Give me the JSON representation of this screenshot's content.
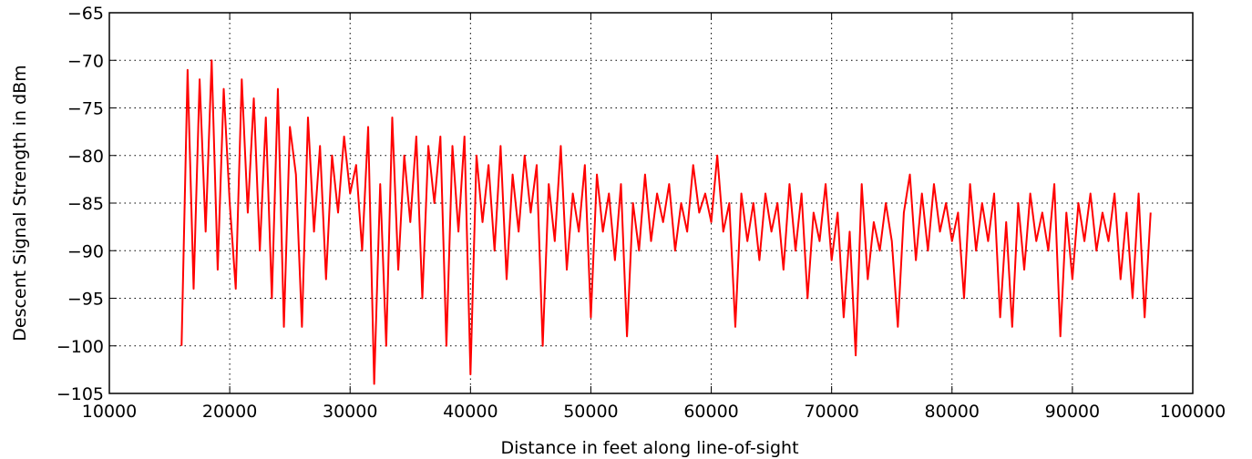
{
  "chart_data": {
    "type": "line",
    "xlabel": "Distance in feet along line-of-sight",
    "ylabel": "Descent Signal Strength in dBm",
    "xlim": [
      10000,
      100000
    ],
    "xticks": [
      10000,
      20000,
      30000,
      40000,
      50000,
      60000,
      70000,
      80000,
      90000,
      100000
    ],
    "ylim": [
      -105,
      -65
    ],
    "yticks": [
      {
        "value": -105,
        "label": "−105"
      },
      {
        "value": -100,
        "label": "−100"
      },
      {
        "value": -95,
        "label": "−95"
      },
      {
        "value": -90,
        "label": "−90"
      },
      {
        "value": -85,
        "label": "−85"
      },
      {
        "value": -80,
        "label": "−80"
      },
      {
        "value": -75,
        "label": "−75"
      },
      {
        "value": -70,
        "label": "−70"
      },
      {
        "value": -65,
        "label": "−65"
      }
    ],
    "grid": true,
    "x": [
      16000,
      16500,
      17000,
      17500,
      18000,
      18500,
      19000,
      19500,
      20000,
      20500,
      21000,
      21500,
      22000,
      22500,
      23000,
      23500,
      24000,
      24500,
      25000,
      25500,
      26000,
      26500,
      27000,
      27500,
      28000,
      28500,
      29000,
      29500,
      30000,
      30500,
      31000,
      31500,
      32000,
      32500,
      33000,
      33500,
      34000,
      34500,
      35000,
      35500,
      36000,
      36500,
      37000,
      37500,
      38000,
      38500,
      39000,
      39500,
      40000,
      40500,
      41000,
      41500,
      42000,
      42500,
      43000,
      43500,
      44000,
      44500,
      45000,
      45500,
      46000,
      46500,
      47000,
      47500,
      48000,
      48500,
      49000,
      49500,
      50000,
      50500,
      51000,
      51500,
      52000,
      52500,
      53000,
      53500,
      54000,
      54500,
      55000,
      55500,
      56000,
      56500,
      57000,
      57500,
      58000,
      58500,
      59000,
      59500,
      60000,
      60500,
      61000,
      61500,
      62000,
      62500,
      63000,
      63500,
      64000,
      64500,
      65000,
      65500,
      66000,
      66500,
      67000,
      67500,
      68000,
      68500,
      69000,
      69500,
      70000,
      70500,
      71000,
      71500,
      72000,
      72500,
      73000,
      73500,
      74000,
      74500,
      75000,
      75500,
      76000,
      76500,
      77000,
      77500,
      78000,
      78500,
      79000,
      79500,
      80000,
      80500,
      81000,
      81500,
      82000,
      82500,
      83000,
      83500,
      84000,
      84500,
      85000,
      85500,
      86000,
      86500,
      87000,
      87500,
      88000,
      88500,
      89000,
      89500,
      90000,
      90500,
      91000,
      91500,
      92000,
      92500,
      93000,
      93500,
      94000,
      94500,
      95000,
      95500,
      96000,
      96500
    ],
    "series": [
      {
        "color": "#ff0000",
        "values": [
          -100,
          -71,
          -94,
          -72,
          -88,
          -70,
          -92,
          -73,
          -85,
          -94,
          -72,
          -86,
          -74,
          -90,
          -76,
          -95,
          -73,
          -98,
          -77,
          -82,
          -98,
          -76,
          -88,
          -79,
          -93,
          -80,
          -86,
          -78,
          -84,
          -81,
          -90,
          -77,
          -104,
          -83,
          -100,
          -76,
          -92,
          -80,
          -87,
          -78,
          -95,
          -79,
          -85,
          -78,
          -100,
          -79,
          -88,
          -78,
          -103,
          -80,
          -87,
          -81,
          -90,
          -79,
          -93,
          -82,
          -88,
          -80,
          -86,
          -81,
          -100,
          -83,
          -89,
          -79,
          -92,
          -84,
          -88,
          -81,
          -97,
          -82,
          -88,
          -84,
          -91,
          -83,
          -99,
          -85,
          -90,
          -82,
          -89,
          -84,
          -87,
          -83,
          -90,
          -85,
          -88,
          -81,
          -86,
          -84,
          -87,
          -80,
          -88,
          -85,
          -98,
          -84,
          -89,
          -85,
          -91,
          -84,
          -88,
          -85,
          -92,
          -83,
          -90,
          -84,
          -95,
          -86,
          -89,
          -83,
          -91,
          -86,
          -97,
          -88,
          -101,
          -83,
          -93,
          -87,
          -90,
          -85,
          -89,
          -98,
          -86,
          -82,
          -91,
          -84,
          -90,
          -83,
          -88,
          -85,
          -89,
          -86,
          -95,
          -83,
          -90,
          -85,
          -89,
          -84,
          -97,
          -87,
          -98,
          -85,
          -92,
          -84,
          -89,
          -86,
          -90,
          -83,
          -99,
          -86,
          -93,
          -85,
          -89,
          -84,
          -90,
          -86,
          -89,
          -84,
          -93,
          -86,
          -95,
          -84,
          -97,
          -86
        ]
      }
    ]
  }
}
